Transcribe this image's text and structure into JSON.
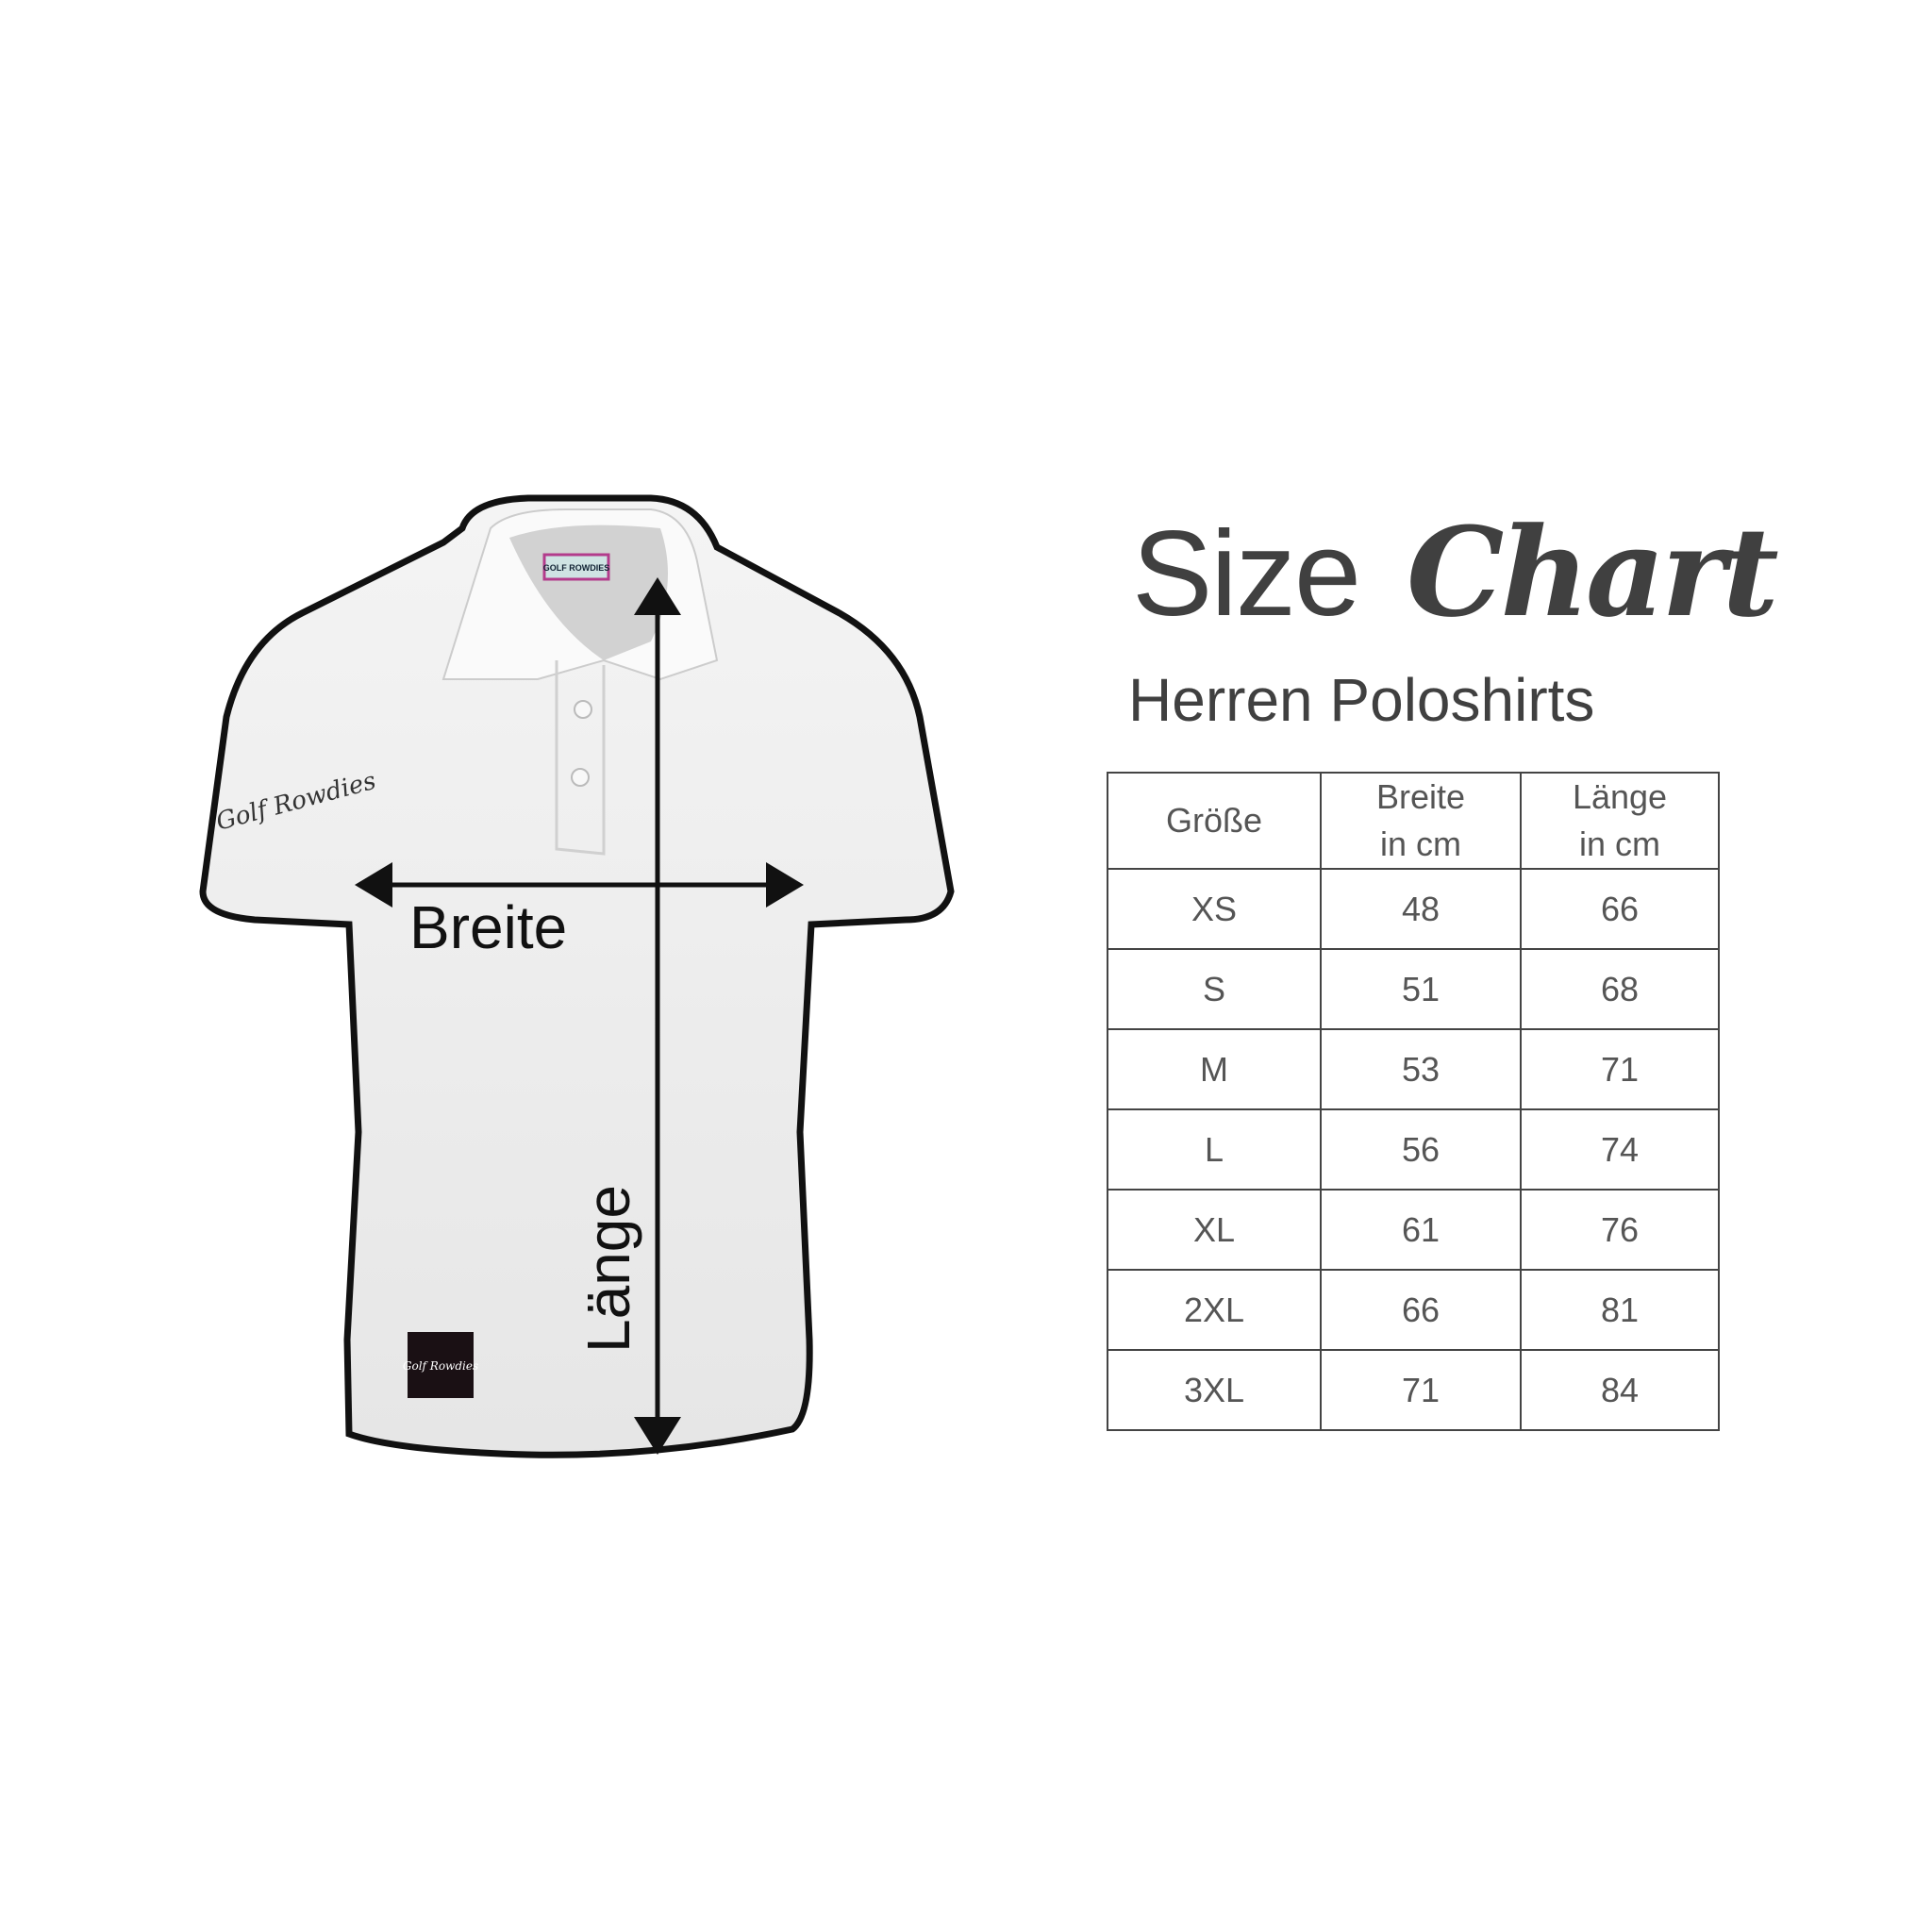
{
  "title": {
    "word1": "Size",
    "word2": "Chart"
  },
  "subtitle": "Herren Poloshirts",
  "diagram": {
    "width_label": "Breite",
    "length_label": "Länge",
    "neck_tag": "GOLF ROWDIES",
    "brand": "Golf Rowdies"
  },
  "chart_data": {
    "type": "table",
    "columns": [
      "Größe",
      [
        "Breite",
        "in cm"
      ],
      [
        "Länge",
        "in cm"
      ]
    ],
    "rows": [
      [
        "XS",
        "48",
        "66"
      ],
      [
        "S",
        "51",
        "68"
      ],
      [
        "M",
        "53",
        "71"
      ],
      [
        "L",
        "56",
        "74"
      ],
      [
        "XL",
        "61",
        "76"
      ],
      [
        "2XL",
        "66",
        "81"
      ],
      [
        "3XL",
        "71",
        "84"
      ]
    ]
  }
}
